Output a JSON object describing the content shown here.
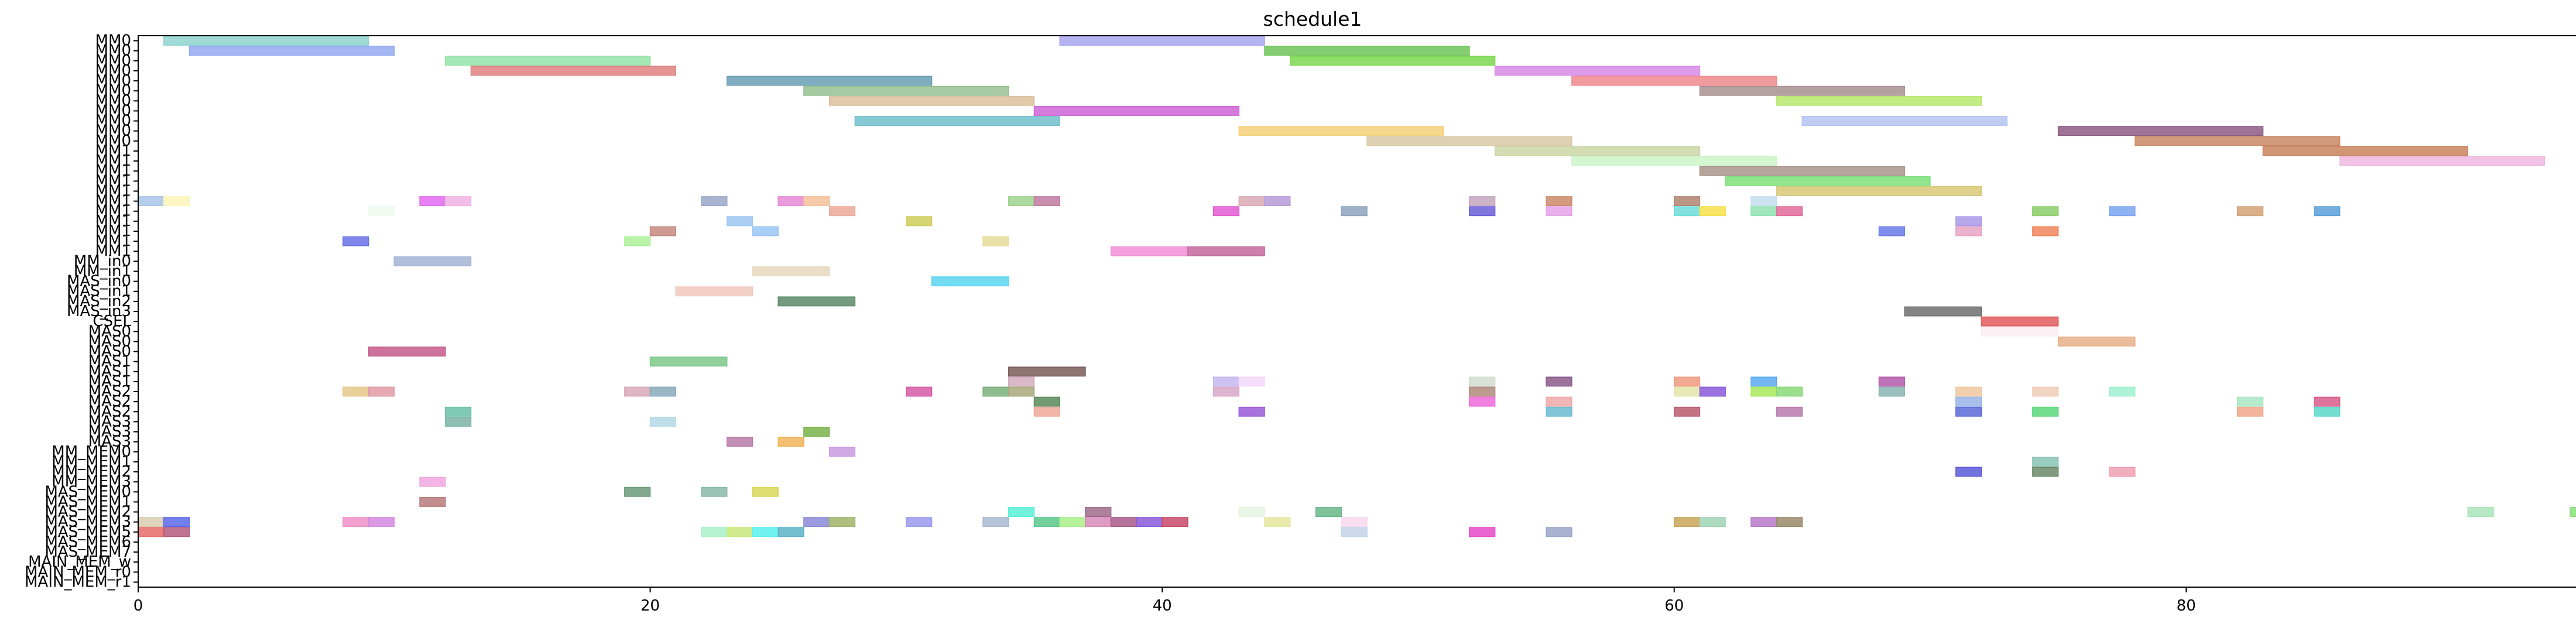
{
  "chart_data": {
    "type": "gantt",
    "title": "schedule1",
    "xlabel": "",
    "ylabel": "",
    "xlim": [
      0,
      95.5
    ],
    "xticks": [
      0,
      20,
      40,
      60,
      80
    ],
    "grid": false,
    "rows": [
      "MM0",
      "MM0",
      "MM0",
      "MM0",
      "MM0",
      "MM0",
      "MM0",
      "MM0",
      "MM0",
      "MM0",
      "MM0",
      "MM1",
      "MM1",
      "MM1",
      "MM1",
      "MM1",
      "MM1",
      "MM1",
      "MM1",
      "MM1",
      "MM1",
      "MM1",
      "MM_in0",
      "MM_in1",
      "MAS_in0",
      "MAS_in1",
      "MAS_in2",
      "MAS_in3",
      "CSEL",
      "MAS0",
      "MAS0",
      "MAS0",
      "MAS1",
      "MAS1",
      "MAS1",
      "MAS2",
      "MAS2",
      "MAS2",
      "MAS3",
      "MAS3",
      "MAS3",
      "MM_MEM0",
      "MM_MEM1",
      "MM_MEM2",
      "MM_MEM3",
      "MAS_MEM0",
      "MAS_MEM1",
      "MAS_MEM2",
      "MAS_MEM3",
      "MAS_MEM5",
      "MAS_MEM6",
      "MAS_MEM7",
      "MAIN_MEM_w",
      "MAIN_MEM_r0",
      "MAIN_MEM_r1"
    ],
    "bars": [
      {
        "row": 0,
        "start": 1,
        "end": 9,
        "color": "#8fd3cf"
      },
      {
        "row": 0,
        "start": 36,
        "end": 44,
        "color": "#a8a6ee"
      },
      {
        "row": 1,
        "start": 2,
        "end": 10,
        "color": "#93a8f0"
      },
      {
        "row": 1,
        "start": 44,
        "end": 52,
        "color": "#6fc45a"
      },
      {
        "row": 2,
        "start": 12,
        "end": 20,
        "color": "#94e3a8"
      },
      {
        "row": 2,
        "start": 45,
        "end": 53,
        "color": "#7cd84f"
      },
      {
        "row": 3,
        "start": 13,
        "end": 21,
        "color": "#e08080"
      },
      {
        "row": 3,
        "start": 53,
        "end": 61,
        "color": "#d98ae8"
      },
      {
        "row": 4,
        "start": 23,
        "end": 31,
        "color": "#6a9eb5"
      },
      {
        "row": 4,
        "start": 56,
        "end": 64,
        "color": "#f08a8e"
      },
      {
        "row": 5,
        "start": 26,
        "end": 34,
        "color": "#95c08f"
      },
      {
        "row": 5,
        "start": 61,
        "end": 69,
        "color": "#a89092"
      },
      {
        "row": 6,
        "start": 27,
        "end": 35,
        "color": "#dcbf9d"
      },
      {
        "row": 6,
        "start": 64,
        "end": 72,
        "color": "#b7e86e"
      },
      {
        "row": 7,
        "start": 35,
        "end": 43,
        "color": "#cd64d6"
      },
      {
        "row": 8,
        "start": 28,
        "end": 36,
        "color": "#70bfcb"
      },
      {
        "row": 8,
        "start": 65,
        "end": 73,
        "color": "#b4c3f2"
      },
      {
        "row": 9,
        "start": 43,
        "end": 51,
        "color": "#f5d27a"
      },
      {
        "row": 9,
        "start": 75,
        "end": 83,
        "color": "#8e5a86"
      },
      {
        "row": 10,
        "start": 48,
        "end": 56,
        "color": "#d9c9a6"
      },
      {
        "row": 10,
        "start": 78,
        "end": 86,
        "color": "#c98a64"
      },
      {
        "row": 11,
        "start": 53,
        "end": 61,
        "color": "#cbd6a5"
      },
      {
        "row": 11,
        "start": 83,
        "end": 91,
        "color": "#c8825c"
      },
      {
        "row": 12,
        "start": 56,
        "end": 64,
        "color": "#cdf5c9"
      },
      {
        "row": 12,
        "start": 86,
        "end": 94,
        "color": "#eeb7df"
      },
      {
        "row": 13,
        "start": 61,
        "end": 69,
        "color": "#a8948a"
      },
      {
        "row": 14,
        "start": 62,
        "end": 70,
        "color": "#7de07a"
      },
      {
        "row": 15,
        "start": 64,
        "end": 72,
        "color": "#d8c977"
      },
      {
        "row": 16,
        "start": 0,
        "end": 1,
        "color": "#a8c4e8"
      },
      {
        "row": 16,
        "start": 1,
        "end": 2,
        "color": "#fbf4b8"
      },
      {
        "row": 16,
        "start": 11,
        "end": 12,
        "color": "#e36af0"
      },
      {
        "row": 16,
        "start": 12,
        "end": 13,
        "color": "#f0b3e4"
      },
      {
        "row": 16,
        "start": 22,
        "end": 23,
        "color": "#9aa8c8"
      },
      {
        "row": 16,
        "start": 25,
        "end": 26,
        "color": "#e88ad6"
      },
      {
        "row": 16,
        "start": 26,
        "end": 27,
        "color": "#f5c09a"
      },
      {
        "row": 16,
        "start": 34,
        "end": 35,
        "color": "#9ed28e"
      },
      {
        "row": 16,
        "start": 35,
        "end": 36,
        "color": "#c07aa0"
      },
      {
        "row": 16,
        "start": 43,
        "end": 44,
        "color": "#d9a9b4"
      },
      {
        "row": 16,
        "start": 44,
        "end": 45,
        "color": "#b59ad8"
      },
      {
        "row": 16,
        "start": 52,
        "end": 53,
        "color": "#c4a6be"
      },
      {
        "row": 16,
        "start": 55,
        "end": 56,
        "color": "#cc8a6a"
      },
      {
        "row": 16,
        "start": 60,
        "end": 61,
        "color": "#b08470"
      },
      {
        "row": 16,
        "start": 63,
        "end": 64,
        "color": "#c4def0"
      },
      {
        "row": 17,
        "start": 9,
        "end": 10,
        "color": "#f0faf0"
      },
      {
        "row": 17,
        "start": 27,
        "end": 28,
        "color": "#eba89a"
      },
      {
        "row": 17,
        "start": 42,
        "end": 43,
        "color": "#e25ad0"
      },
      {
        "row": 17,
        "start": 47,
        "end": 48,
        "color": "#8ea3c0"
      },
      {
        "row": 17,
        "start": 52,
        "end": 53,
        "color": "#6a5ed8"
      },
      {
        "row": 17,
        "start": 55,
        "end": 56,
        "color": "#e5a2e8"
      },
      {
        "row": 17,
        "start": 60,
        "end": 61,
        "color": "#6cdcd8"
      },
      {
        "row": 17,
        "start": 61,
        "end": 62,
        "color": "#f6e04a"
      },
      {
        "row": 17,
        "start": 63,
        "end": 64,
        "color": "#8fe0b0"
      },
      {
        "row": 17,
        "start": 64,
        "end": 65,
        "color": "#e06a9a"
      },
      {
        "row": 17,
        "start": 74,
        "end": 75,
        "color": "#8ccc68"
      },
      {
        "row": 17,
        "start": 77,
        "end": 78,
        "color": "#7aa3f0"
      },
      {
        "row": 17,
        "start": 82,
        "end": 83,
        "color": "#d4a276"
      },
      {
        "row": 17,
        "start": 85,
        "end": 86,
        "color": "#5aa0d8"
      },
      {
        "row": 18,
        "start": 23,
        "end": 24,
        "color": "#9cc6f0"
      },
      {
        "row": 18,
        "start": 30,
        "end": 31,
        "color": "#cccc5a"
      },
      {
        "row": 18,
        "start": 71,
        "end": 72,
        "color": "#a89ae8"
      },
      {
        "row": 19,
        "start": 20,
        "end": 21,
        "color": "#c48a7e"
      },
      {
        "row": 19,
        "start": 24,
        "end": 25,
        "color": "#9ac6f6"
      },
      {
        "row": 19,
        "start": 68,
        "end": 69,
        "color": "#6a7ae8"
      },
      {
        "row": 19,
        "start": 71,
        "end": 72,
        "color": "#e8a4c4"
      },
      {
        "row": 19,
        "start": 74,
        "end": 75,
        "color": "#f0845a"
      },
      {
        "row": 20,
        "start": 8,
        "end": 9,
        "color": "#6a72e8"
      },
      {
        "row": 20,
        "start": 19,
        "end": 20,
        "color": "#aef09a"
      },
      {
        "row": 20,
        "start": 33,
        "end": 34,
        "color": "#e6dc9a"
      },
      {
        "row": 21,
        "start": 38,
        "end": 41,
        "color": "#f090d6"
      },
      {
        "row": 21,
        "start": 41,
        "end": 44,
        "color": "#c4689c"
      },
      {
        "row": 22,
        "start": 10,
        "end": 13,
        "color": "#a4b4d4"
      },
      {
        "row": 23,
        "start": 24,
        "end": 27,
        "color": "#e8d8c0"
      },
      {
        "row": 24,
        "start": 31,
        "end": 34,
        "color": "#5ad6f0"
      },
      {
        "row": 25,
        "start": 21,
        "end": 24,
        "color": "#f0c8bc"
      },
      {
        "row": 26,
        "start": 25,
        "end": 28,
        "color": "#5a8a66"
      },
      {
        "row": 27,
        "start": 69,
        "end": 72,
        "color": "#6e6e6e"
      },
      {
        "row": 28,
        "start": 72,
        "end": 75,
        "color": "#e05a5a"
      },
      {
        "row": 29,
        "start": 72,
        "end": 75,
        "color": "#faeef2"
      },
      {
        "row": 30,
        "start": 75,
        "end": 78,
        "color": "#e8b088"
      },
      {
        "row": 31,
        "start": 9,
        "end": 12,
        "color": "#c45a8a"
      },
      {
        "row": 32,
        "start": 20,
        "end": 23,
        "color": "#7cc88a"
      },
      {
        "row": 33,
        "start": 34,
        "end": 37,
        "color": "#7a5a5a"
      },
      {
        "row": 34,
        "start": 34,
        "end": 35,
        "color": "#d4aebe"
      },
      {
        "row": 34,
        "start": 42,
        "end": 43,
        "color": "#c4b8f0"
      },
      {
        "row": 34,
        "start": 43,
        "end": 44,
        "color": "#f2d8f8"
      },
      {
        "row": 34,
        "start": 52,
        "end": 53,
        "color": "#d4dcd0"
      },
      {
        "row": 34,
        "start": 55,
        "end": 56,
        "color": "#8a5a8a"
      },
      {
        "row": 34,
        "start": 60,
        "end": 61,
        "color": "#f09a80"
      },
      {
        "row": 34,
        "start": 63,
        "end": 64,
        "color": "#5aaaf0"
      },
      {
        "row": 34,
        "start": 68,
        "end": 69,
        "color": "#b45aaa"
      },
      {
        "row": 35,
        "start": 8,
        "end": 9,
        "color": "#e6c88a"
      },
      {
        "row": 35,
        "start": 9,
        "end": 10,
        "color": "#e09aa4"
      },
      {
        "row": 35,
        "start": 19,
        "end": 20,
        "color": "#d8a8b8"
      },
      {
        "row": 35,
        "start": 20,
        "end": 21,
        "color": "#8aaabc"
      },
      {
        "row": 35,
        "start": 30,
        "end": 31,
        "color": "#d65aa8"
      },
      {
        "row": 35,
        "start": 33,
        "end": 34,
        "color": "#7ab07a"
      },
      {
        "row": 35,
        "start": 34,
        "end": 35,
        "color": "#a8a87a"
      },
      {
        "row": 35,
        "start": 42,
        "end": 43,
        "color": "#d8a8c8"
      },
      {
        "row": 35,
        "start": 52,
        "end": 53,
        "color": "#b08a7e"
      },
      {
        "row": 35,
        "start": 60,
        "end": 61,
        "color": "#e4e6a8"
      },
      {
        "row": 35,
        "start": 61,
        "end": 62,
        "color": "#8a5ad8"
      },
      {
        "row": 35,
        "start": 63,
        "end": 64,
        "color": "#a8e85a"
      },
      {
        "row": 35,
        "start": 64,
        "end": 65,
        "color": "#8ad87a"
      },
      {
        "row": 35,
        "start": 68,
        "end": 69,
        "color": "#8ab4b0"
      },
      {
        "row": 35,
        "start": 71,
        "end": 72,
        "color": "#f0c8a0"
      },
      {
        "row": 35,
        "start": 74,
        "end": 75,
        "color": "#f0ccb8"
      },
      {
        "row": 35,
        "start": 77,
        "end": 78,
        "color": "#a0f0d0"
      },
      {
        "row": 36,
        "start": 35,
        "end": 36,
        "color": "#5a8a5a"
      },
      {
        "row": 36,
        "start": 52,
        "end": 53,
        "color": "#f06ad8"
      },
      {
        "row": 36,
        "start": 55,
        "end": 56,
        "color": "#f0a8a8"
      },
      {
        "row": 36,
        "start": 71,
        "end": 72,
        "color": "#9ab4e8"
      },
      {
        "row": 36,
        "start": 82,
        "end": 83,
        "color": "#a8e6c4"
      },
      {
        "row": 36,
        "start": 85,
        "end": 86,
        "color": "#d85a8a"
      },
      {
        "row": 37,
        "start": 12,
        "end": 13,
        "color": "#6ac0a8"
      },
      {
        "row": 37,
        "start": 35,
        "end": 36,
        "color": "#f0a89a"
      },
      {
        "row": 37,
        "start": 43,
        "end": 44,
        "color": "#9a5ad8"
      },
      {
        "row": 37,
        "start": 55,
        "end": 56,
        "color": "#6abcd0"
      },
      {
        "row": 37,
        "start": 60,
        "end": 61,
        "color": "#b85a6e"
      },
      {
        "row": 37,
        "start": 64,
        "end": 65,
        "color": "#b87aae"
      },
      {
        "row": 37,
        "start": 71,
        "end": 72,
        "color": "#5a6ad8"
      },
      {
        "row": 37,
        "start": 74,
        "end": 75,
        "color": "#5ad87a"
      },
      {
        "row": 37,
        "start": 82,
        "end": 83,
        "color": "#f0a88a"
      },
      {
        "row": 37,
        "start": 85,
        "end": 86,
        "color": "#5ad8c8"
      },
      {
        "row": 38,
        "start": 12,
        "end": 13,
        "color": "#7ab4a4"
      },
      {
        "row": 38,
        "start": 20,
        "end": 21,
        "color": "#b4d8e6"
      },
      {
        "row": 39,
        "start": 26,
        "end": 27,
        "color": "#7ab44a"
      },
      {
        "row": 40,
        "start": 23,
        "end": 24,
        "color": "#b87aa8"
      },
      {
        "row": 40,
        "start": 25,
        "end": 26,
        "color": "#f0b45a"
      },
      {
        "row": 41,
        "start": 27,
        "end": 28,
        "color": "#c89ae0"
      },
      {
        "row": 42,
        "start": 74,
        "end": 75,
        "color": "#8ac4b4"
      },
      {
        "row": 43,
        "start": 71,
        "end": 72,
        "color": "#5a5ad8"
      },
      {
        "row": 43,
        "start": 74,
        "end": 75,
        "color": "#6a8a6a"
      },
      {
        "row": 43,
        "start": 77,
        "end": 78,
        "color": "#f0a0b0"
      },
      {
        "row": 44,
        "start": 11,
        "end": 12,
        "color": "#f0a8e0"
      },
      {
        "row": 45,
        "start": 19,
        "end": 20,
        "color": "#6a9a7a"
      },
      {
        "row": 45,
        "start": 22,
        "end": 23,
        "color": "#8ab8a8"
      },
      {
        "row": 45,
        "start": 24,
        "end": 25,
        "color": "#d8d85a"
      },
      {
        "row": 46,
        "start": 11,
        "end": 12,
        "color": "#b87a7a"
      },
      {
        "row": 47,
        "start": 34,
        "end": 35,
        "color": "#5af0d8"
      },
      {
        "row": 47,
        "start": 37,
        "end": 38,
        "color": "#a06a8a"
      },
      {
        "row": 47,
        "start": 43,
        "end": 44,
        "color": "#e6f4e0"
      },
      {
        "row": 47,
        "start": 46,
        "end": 47,
        "color": "#6ab88a"
      },
      {
        "row": 47,
        "start": 91,
        "end": 92,
        "color": "#a8e4b8"
      },
      {
        "row": 47,
        "start": 95,
        "end": 96,
        "color": "#8ae07a"
      },
      {
        "row": 48,
        "start": 0,
        "end": 1,
        "color": "#d8ccb0"
      },
      {
        "row": 48,
        "start": 1,
        "end": 2,
        "color": "#5a6ae8"
      },
      {
        "row": 48,
        "start": 8,
        "end": 9,
        "color": "#f090c8"
      },
      {
        "row": 48,
        "start": 9,
        "end": 10,
        "color": "#d48ae0"
      },
      {
        "row": 48,
        "start": 26,
        "end": 27,
        "color": "#8a8ad8"
      },
      {
        "row": 48,
        "start": 27,
        "end": 28,
        "color": "#a0b46a"
      },
      {
        "row": 48,
        "start": 30,
        "end": 31,
        "color": "#9a9af0"
      },
      {
        "row": 48,
        "start": 33,
        "end": 34,
        "color": "#a8b8d0"
      },
      {
        "row": 48,
        "start": 35,
        "end": 36,
        "color": "#5ac88a"
      },
      {
        "row": 48,
        "start": 36,
        "end": 37,
        "color": "#a8f08a"
      },
      {
        "row": 48,
        "start": 37,
        "end": 38,
        "color": "#d88ab8"
      },
      {
        "row": 48,
        "start": 38,
        "end": 39,
        "color": "#a85a8a"
      },
      {
        "row": 48,
        "start": 39,
        "end": 40,
        "color": "#8a5ad8"
      },
      {
        "row": 48,
        "start": 40,
        "end": 41,
        "color": "#c84a6a"
      },
      {
        "row": 48,
        "start": 44,
        "end": 45,
        "color": "#e6e6a0"
      },
      {
        "row": 48,
        "start": 47,
        "end": 48,
        "color": "#f8d8f0"
      },
      {
        "row": 48,
        "start": 60,
        "end": 61,
        "color": "#c8a45a"
      },
      {
        "row": 48,
        "start": 61,
        "end": 62,
        "color": "#a0d4b4"
      },
      {
        "row": 48,
        "start": 63,
        "end": 64,
        "color": "#b87ac8"
      },
      {
        "row": 48,
        "start": 64,
        "end": 65,
        "color": "#9a8a6a"
      },
      {
        "row": 49,
        "start": 0,
        "end": 1,
        "color": "#e86a6a"
      },
      {
        "row": 49,
        "start": 1,
        "end": 2,
        "color": "#b45a7a"
      },
      {
        "row": 49,
        "start": 22,
        "end": 23,
        "color": "#a8f0c8"
      },
      {
        "row": 49,
        "start": 23,
        "end": 24,
        "color": "#c8e87a"
      },
      {
        "row": 49,
        "start": 24,
        "end": 25,
        "color": "#5af0f0"
      },
      {
        "row": 49,
        "start": 25,
        "end": 26,
        "color": "#5ab4c8"
      },
      {
        "row": 49,
        "start": 47,
        "end": 48,
        "color": "#c4d4e8"
      },
      {
        "row": 49,
        "start": 52,
        "end": 53,
        "color": "#e84ac8"
      },
      {
        "row": 49,
        "start": 55,
        "end": 56,
        "color": "#9aa4c8"
      }
    ]
  }
}
